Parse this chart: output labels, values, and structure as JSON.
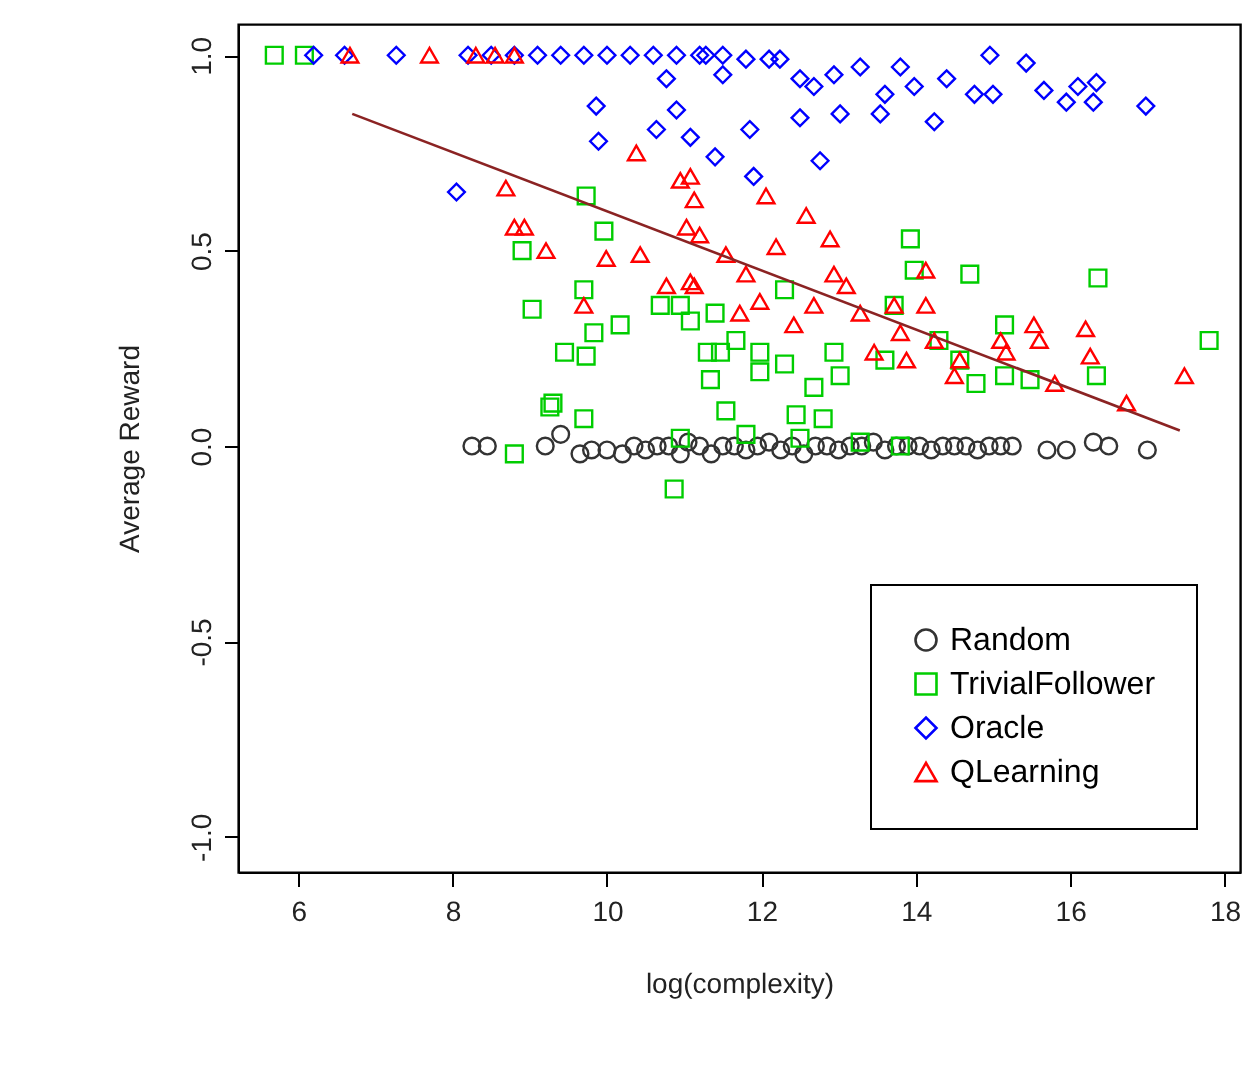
{
  "chart_data": {
    "type": "scatter",
    "xlabel": "log(complexity)",
    "ylabel": "Average Reward",
    "xlim": [
      5.22,
      18.2
    ],
    "ylim": [
      -1.09,
      1.08
    ],
    "xticks": [
      6,
      8,
      10,
      12,
      14,
      16,
      18
    ],
    "yticks": [
      {
        "value": -1,
        "label": "-1.0"
      },
      -0.5,
      {
        "value": 0,
        "label": "0.0"
      },
      0.5,
      {
        "value": 1,
        "label": "1.0"
      }
    ],
    "grid": false,
    "legend": "bottom right",
    "series": [
      {
        "name": "Random",
        "color": "#333333",
        "marker": "circle",
        "x": [
          8.25,
          8.45,
          9.2,
          9.4,
          9.65,
          9.8,
          10.0,
          10.2,
          10.35,
          10.5,
          10.65,
          10.8,
          10.95,
          11.05,
          11.2,
          11.35,
          11.5,
          11.65,
          11.8,
          11.95,
          12.1,
          12.25,
          12.4,
          12.55,
          12.7,
          12.85,
          13.0,
          13.15,
          13.3,
          13.45,
          13.6,
          13.75,
          13.9,
          14.05,
          14.2,
          14.35,
          14.5,
          14.65,
          14.8,
          14.95,
          15.1,
          15.25,
          15.7,
          15.95,
          16.3,
          16.5,
          17.0
        ],
        "values": [
          0.0,
          0.0,
          0.0,
          0.03,
          -0.02,
          -0.01,
          -0.01,
          -0.02,
          0.0,
          -0.01,
          0.0,
          0.0,
          -0.02,
          0.01,
          0.0,
          -0.02,
          0.0,
          0.0,
          -0.01,
          0.0,
          0.01,
          -0.01,
          0.0,
          -0.02,
          0.0,
          0.0,
          -0.01,
          0.0,
          0.0,
          0.01,
          -0.01,
          0.0,
          0.0,
          0.0,
          -0.01,
          0.0,
          0.0,
          0.0,
          -0.01,
          0.0,
          0.0,
          0.0,
          -0.01,
          -0.01,
          0.01,
          0.0,
          -0.01
        ]
      },
      {
        "name": "TrivialFollower",
        "color": "#00cd00",
        "marker": "square",
        "x": [
          5.69,
          6.08,
          9.73,
          9.96,
          8.9,
          9.03,
          9.7,
          10.17,
          9.83,
          9.45,
          9.73,
          9.3,
          9.7,
          8.8,
          10.87,
          9.26,
          13.93,
          13.98,
          14.7,
          16.36,
          17.8,
          15.15,
          16.34,
          14.78,
          15.15,
          12.68,
          13.02,
          11.54,
          12.45,
          12.8,
          11.4,
          11.3,
          11.98,
          12.3,
          12.94,
          13.72,
          13.6,
          11.67,
          10.95,
          10.69,
          11.08,
          11.34,
          11.47,
          11.98,
          10.95,
          11.8,
          12.5,
          13.28,
          13.8,
          12.3,
          14.3,
          14.57,
          15.48
        ],
        "values": [
          1.0,
          1.0,
          0.64,
          0.55,
          0.5,
          0.35,
          0.4,
          0.31,
          0.29,
          0.24,
          0.23,
          0.11,
          0.07,
          -0.02,
          -0.11,
          0.1,
          0.53,
          0.45,
          0.44,
          0.43,
          0.27,
          0.31,
          0.18,
          0.16,
          0.18,
          0.15,
          0.18,
          0.09,
          0.08,
          0.07,
          0.34,
          0.24,
          0.24,
          0.21,
          0.24,
          0.36,
          0.22,
          0.27,
          0.36,
          0.36,
          0.32,
          0.17,
          0.24,
          0.19,
          0.02,
          0.03,
          0.02,
          0.01,
          0.0,
          0.4,
          0.27,
          0.22,
          0.17
        ]
      },
      {
        "name": "Oracle",
        "color": "#0000ff",
        "marker": "diamond",
        "x": [
          6.2,
          6.6,
          7.27,
          8.2,
          8.5,
          8.8,
          9.1,
          9.4,
          9.7,
          10.0,
          10.3,
          10.6,
          10.9,
          11.2,
          11.5,
          11.8,
          12.1,
          8.05,
          9.86,
          9.89,
          10.64,
          10.9,
          11.08,
          10.77,
          11.4,
          11.85,
          11.9,
          12.76,
          12.5,
          13.02,
          13.54,
          14.24,
          16.98,
          16.3,
          15.95,
          15.66,
          15.43,
          14.96,
          14.4,
          13.98,
          13.8,
          13.28,
          12.94,
          12.24,
          11.28,
          12.5,
          14.76,
          16.1,
          16.34,
          15.0,
          13.6,
          12.68,
          11.5
        ],
        "values": [
          1.0,
          1.0,
          1.0,
          1.0,
          1.0,
          1.0,
          1.0,
          1.0,
          1.0,
          1.0,
          1.0,
          1.0,
          1.0,
          1.0,
          1.0,
          0.99,
          0.99,
          0.65,
          0.87,
          0.78,
          0.81,
          0.86,
          0.79,
          0.94,
          0.74,
          0.81,
          0.69,
          0.73,
          0.84,
          0.85,
          0.85,
          0.83,
          0.87,
          0.88,
          0.88,
          0.91,
          0.98,
          1.0,
          0.94,
          0.92,
          0.97,
          0.97,
          0.95,
          0.99,
          1.0,
          0.94,
          0.9,
          0.92,
          0.93,
          0.9,
          0.9,
          0.92,
          0.95
        ]
      },
      {
        "name": "QLearning",
        "color": "#ff0000",
        "marker": "triangle",
        "x": [
          6.67,
          7.7,
          8.3,
          8.55,
          8.8,
          10.38,
          8.69,
          8.8,
          8.93,
          9.21,
          9.99,
          10.43,
          9.7,
          10.77,
          11.13,
          10.95,
          11.13,
          11.03,
          11.2,
          11.08,
          12.06,
          12.58,
          12.89,
          12.19,
          11.54,
          11.08,
          11.8,
          12.94,
          14.13,
          14.13,
          11.98,
          12.68,
          13.28,
          13.8,
          14.24,
          11.72,
          12.42,
          13.46,
          14.5,
          15.1,
          15.53,
          16.2,
          16.26,
          15.6,
          17.48,
          16.73,
          15.8,
          13.88,
          15.17,
          14.57,
          13.1,
          13.72
        ],
        "values": [
          1.0,
          1.0,
          1.0,
          1.0,
          1.0,
          0.75,
          0.66,
          0.56,
          0.56,
          0.5,
          0.48,
          0.49,
          0.36,
          0.41,
          0.41,
          0.68,
          0.63,
          0.56,
          0.54,
          0.69,
          0.64,
          0.59,
          0.53,
          0.51,
          0.49,
          0.42,
          0.44,
          0.44,
          0.45,
          0.36,
          0.37,
          0.36,
          0.34,
          0.29,
          0.27,
          0.34,
          0.31,
          0.24,
          0.18,
          0.27,
          0.31,
          0.3,
          0.23,
          0.27,
          0.18,
          0.11,
          0.16,
          0.22,
          0.24,
          0.22,
          0.41,
          0.36
        ]
      },
      {
        "type": "line",
        "color": "#8b2323",
        "x": [
          6.7,
          17.42
        ],
        "values": [
          0.85,
          0.04
        ]
      }
    ]
  }
}
